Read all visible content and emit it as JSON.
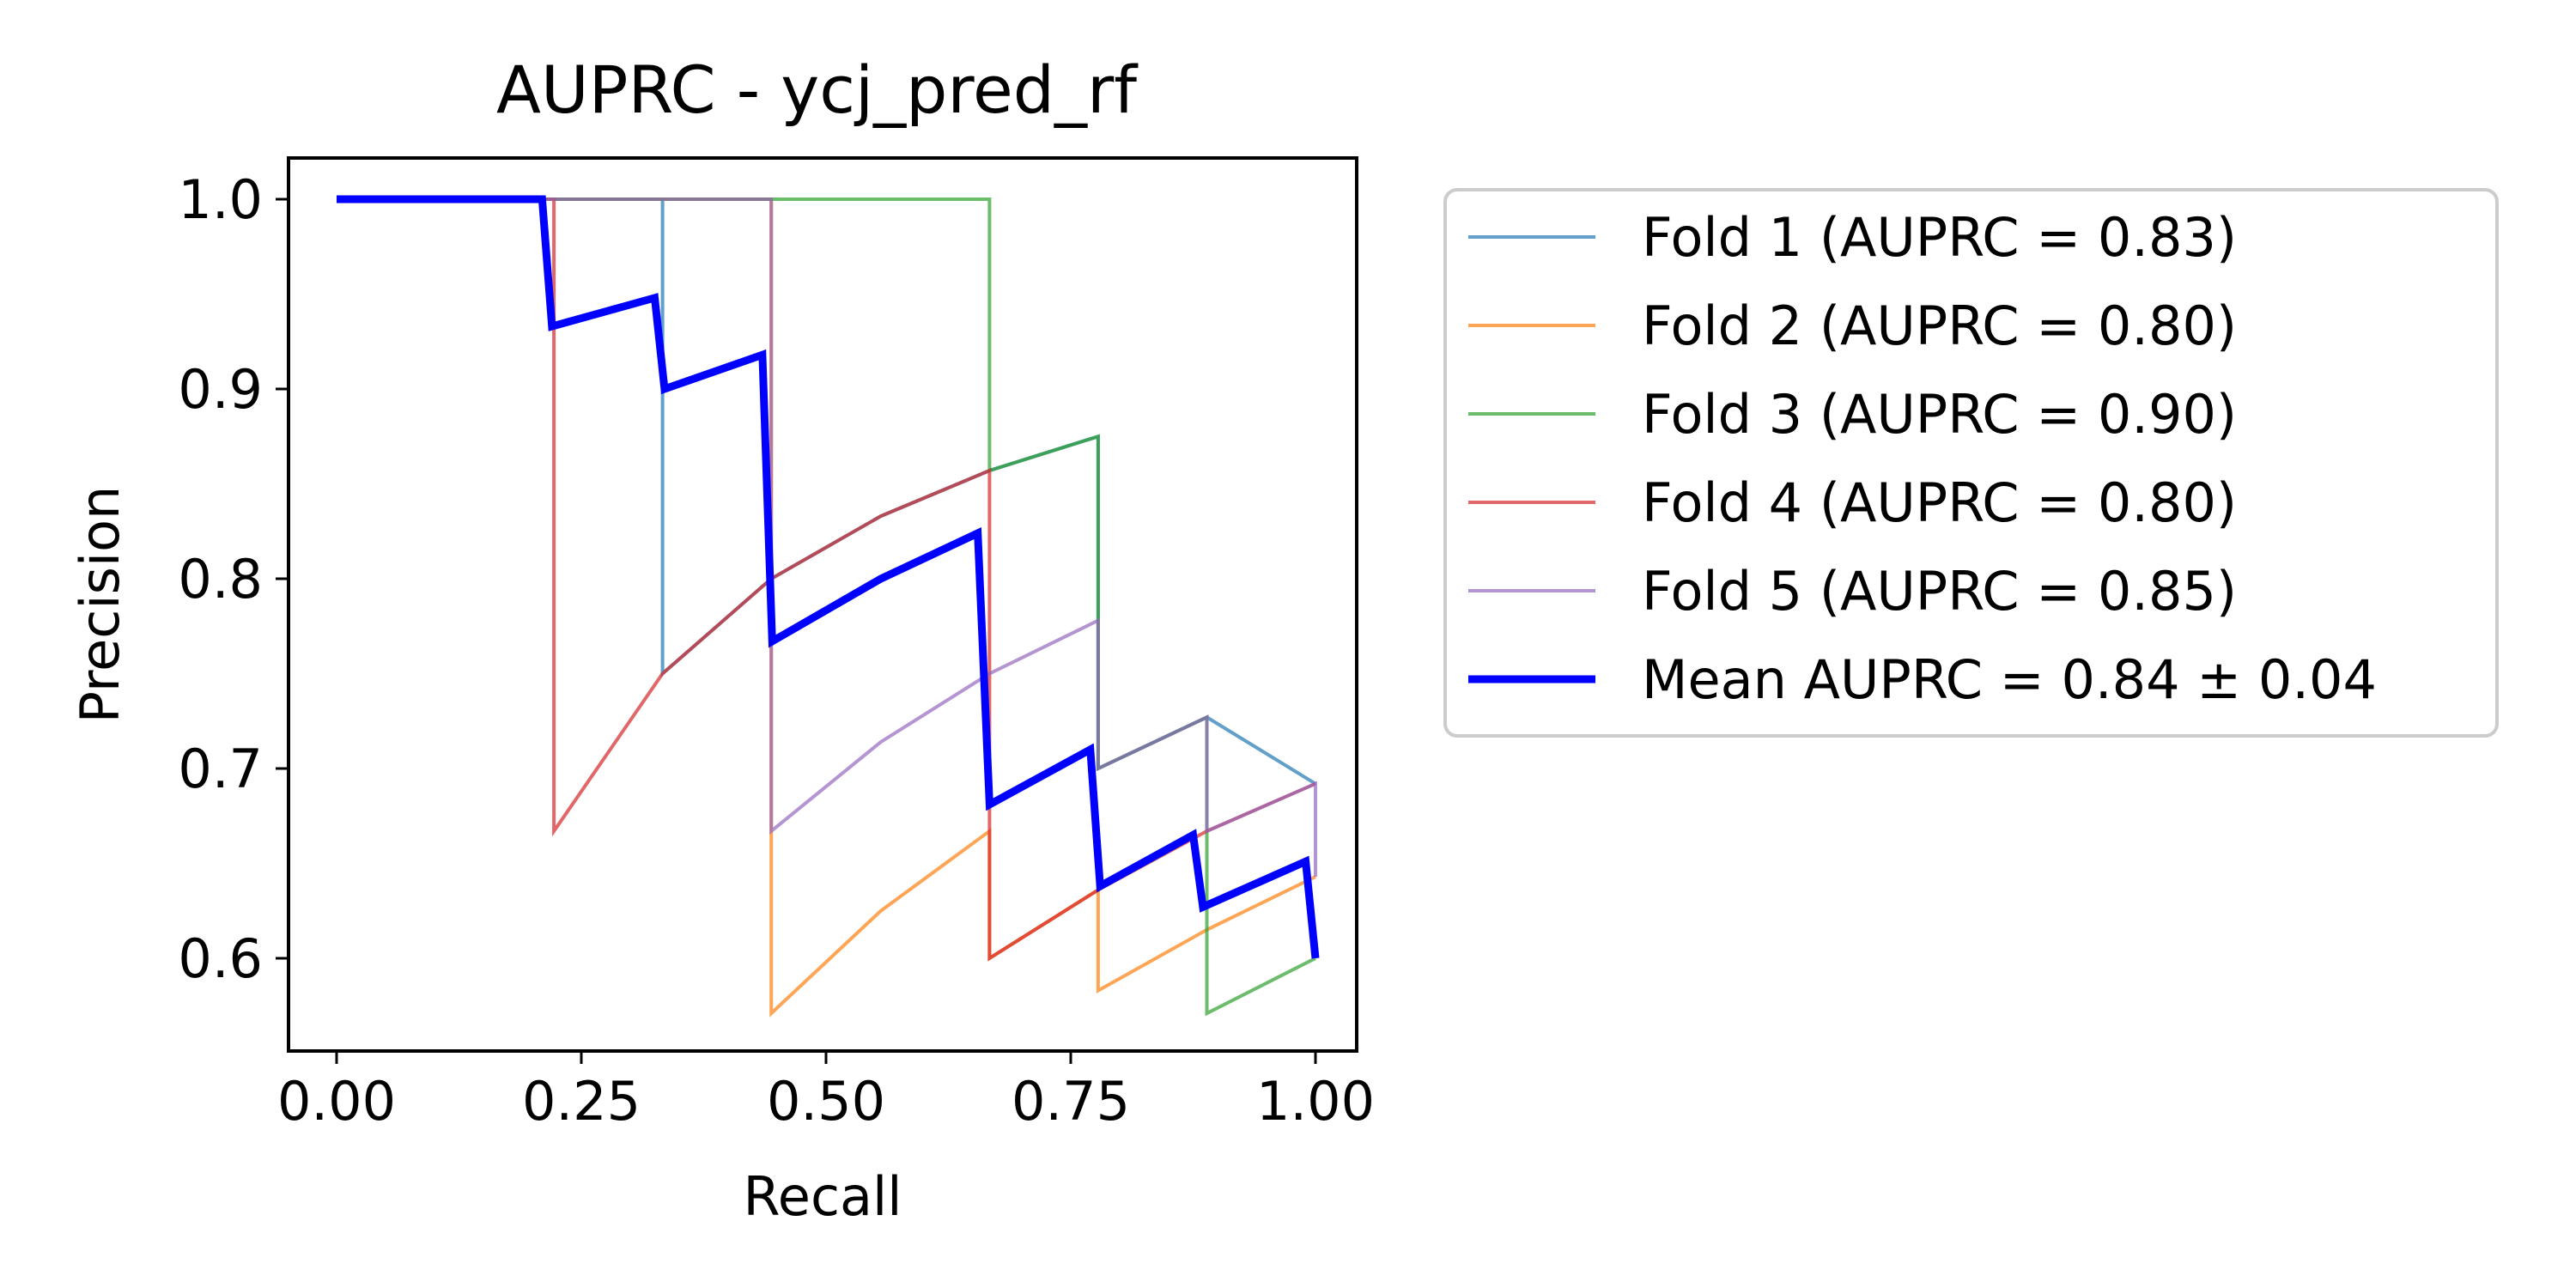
{
  "chart_data": {
    "type": "line",
    "title": "AUPRC - ycj_pred_rf",
    "xlabel": "Recall",
    "ylabel": "Precision",
    "xlim": [
      -0.05,
      1.05
    ],
    "ylim": [
      0.55,
      1.022
    ],
    "xticks": [
      0.0,
      0.25,
      0.5,
      0.75,
      1.0
    ],
    "xtick_labels": [
      "0.00",
      "0.25",
      "0.50",
      "0.75",
      "1.00"
    ],
    "yticks": [
      0.6,
      0.7,
      0.8,
      0.9,
      1.0
    ],
    "ytick_labels": [
      "0.6",
      "0.7",
      "0.8",
      "0.9",
      "1.0"
    ],
    "grid": false,
    "legend_position": "outside-right",
    "series": [
      {
        "name": "Fold 1 (AUPRC = 0.83)",
        "color": "#1f77b4",
        "x": [
          0.0,
          0.111,
          0.222,
          0.333,
          0.333,
          0.444,
          0.444,
          0.556,
          0.667,
          0.667,
          0.778,
          0.778,
          0.889,
          1.0
        ],
        "y": [
          1.0,
          1.0,
          1.0,
          1.0,
          0.75,
          0.8,
          0.8,
          0.833,
          0.857,
          0.857,
          0.875,
          0.7,
          0.727,
          0.692
        ]
      },
      {
        "name": "Fold 2 (AUPRC = 0.80)",
        "color": "#ff7f0e",
        "x": [
          0.0,
          0.111,
          0.222,
          0.333,
          0.444,
          0.444,
          0.556,
          0.667,
          0.667,
          0.778,
          0.778,
          0.889,
          1.0
        ],
        "y": [
          1.0,
          1.0,
          1.0,
          1.0,
          1.0,
          0.571,
          0.625,
          0.667,
          0.6,
          0.636,
          0.583,
          0.615,
          0.643
        ]
      },
      {
        "name": "Fold 3 (AUPRC = 0.90)",
        "color": "#2ca02c",
        "x": [
          0.0,
          0.111,
          0.222,
          0.333,
          0.444,
          0.556,
          0.667,
          0.667,
          0.778,
          0.778,
          0.889,
          0.889,
          1.0
        ],
        "y": [
          1.0,
          1.0,
          1.0,
          1.0,
          1.0,
          1.0,
          1.0,
          0.857,
          0.875,
          0.7,
          0.727,
          0.571,
          0.6
        ]
      },
      {
        "name": "Fold 4 (AUPRC = 0.80)",
        "color": "#d62728",
        "x": [
          0.0,
          0.111,
          0.222,
          0.222,
          0.333,
          0.444,
          0.556,
          0.667,
          0.667,
          0.778,
          0.889,
          1.0
        ],
        "y": [
          1.0,
          1.0,
          1.0,
          0.667,
          0.75,
          0.8,
          0.833,
          0.857,
          0.6,
          0.636,
          0.667,
          0.692
        ]
      },
      {
        "name": "Fold 5 (AUPRC = 0.85)",
        "color": "#9467bd",
        "x": [
          0.0,
          0.111,
          0.222,
          0.333,
          0.444,
          0.444,
          0.556,
          0.667,
          0.778,
          0.778,
          0.889,
          0.889,
          1.0,
          1.0
        ],
        "y": [
          1.0,
          1.0,
          1.0,
          1.0,
          1.0,
          0.667,
          0.714,
          0.75,
          0.778,
          0.7,
          0.727,
          0.667,
          0.692,
          0.643
        ]
      },
      {
        "name": "Mean AUPRC = 0.84 ± 0.04",
        "color": "#0000ff",
        "bold": true,
        "x": [
          0.0,
          0.21,
          0.22,
          0.325,
          0.335,
          0.435,
          0.445,
          0.556,
          0.655,
          0.667,
          0.77,
          0.78,
          0.875,
          0.885,
          0.99,
          1.0
        ],
        "y": [
          1.0,
          1.0,
          0.933,
          0.948,
          0.9,
          0.918,
          0.767,
          0.8,
          0.824,
          0.681,
          0.71,
          0.638,
          0.665,
          0.627,
          0.651,
          0.6
        ]
      }
    ]
  }
}
